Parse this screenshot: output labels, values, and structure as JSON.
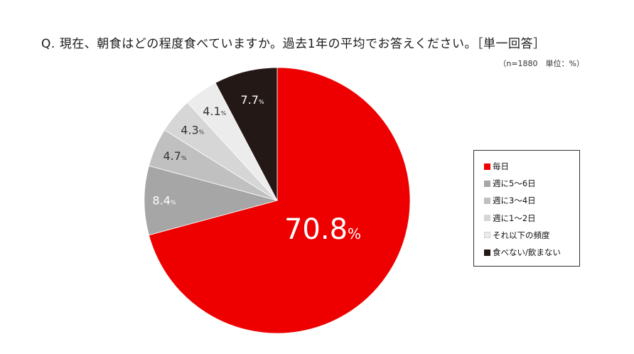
{
  "chart_data": {
    "type": "pie",
    "title": "Q.  現在、朝食はどの程度食べていますか。過去1年の平均でお答えください。［単一回答］",
    "note": "（n=1880　単位：%）",
    "unit": "%",
    "categories": [
      "毎日",
      "週に5～6日",
      "週に3～4日",
      "週に1～2日",
      "それ以下の頻度",
      "食べない/飲まない"
    ],
    "values": [
      70.8,
      8.4,
      4.7,
      4.3,
      4.1,
      7.7
    ],
    "value_labels": [
      "70.8",
      "8.4",
      "4.7",
      "4.3",
      "4.1",
      "7.7"
    ],
    "colors": [
      "#ee0000",
      "#a6a6a6",
      "#c0c0c0",
      "#d6d6d6",
      "#ececec",
      "#231815"
    ],
    "label_colors": [
      "#ffffff",
      "#ffffff",
      "#333333",
      "#333333",
      "#333333",
      "#ffffff"
    ],
    "legend": {
      "placement": "right",
      "items": [
        {
          "label": "毎日",
          "color": "#ee0000"
        },
        {
          "label": "週に5～6日",
          "color": "#a6a6a6"
        },
        {
          "label": "週に3～4日",
          "color": "#c0c0c0"
        },
        {
          "label": "週に1～2日",
          "color": "#d6d6d6"
        },
        {
          "label": "それ以下の頻度",
          "color": "#ececec"
        },
        {
          "label": "食べない/飲まない",
          "color": "#231815"
        }
      ]
    }
  }
}
